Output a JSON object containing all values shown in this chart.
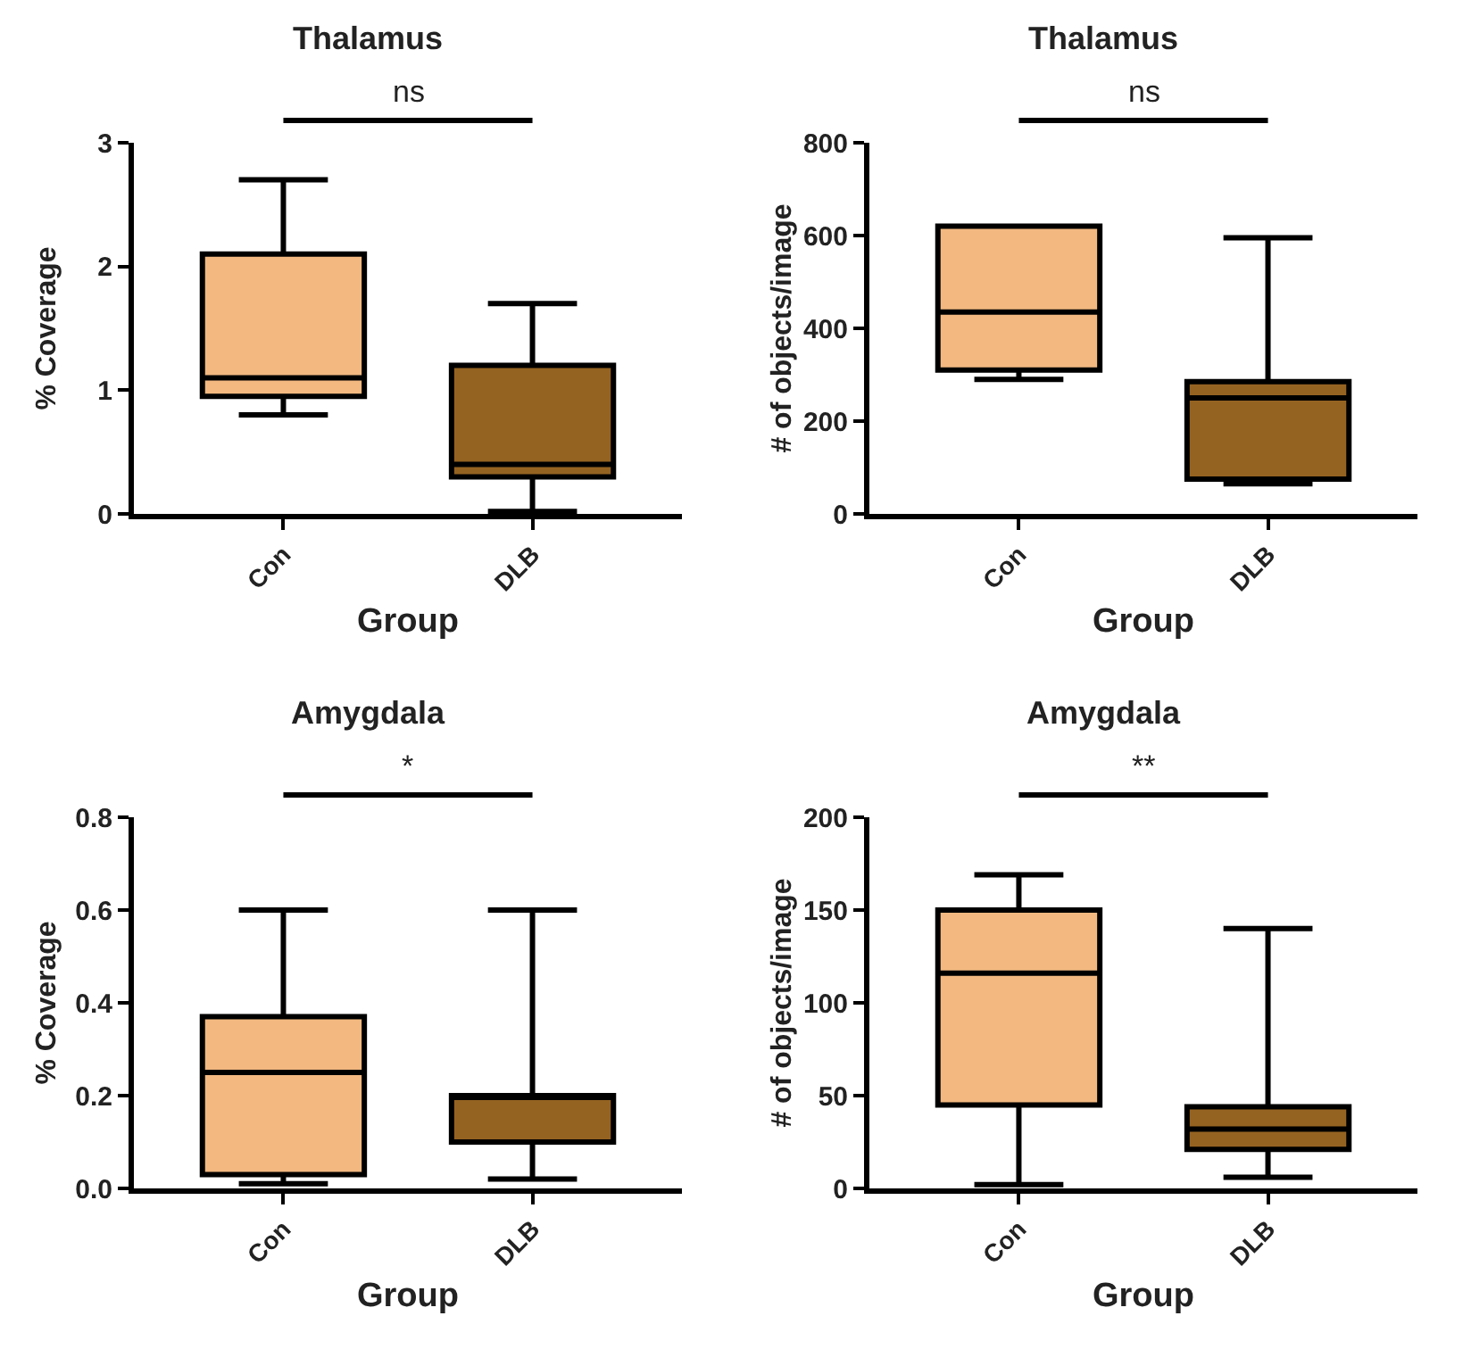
{
  "chart_data": [
    {
      "type": "box",
      "title": "Thalamus",
      "ylabel": "% Coverage",
      "xlabel": "Group",
      "categories": [
        "Con",
        "DLB"
      ],
      "colors": [
        "#f2b880",
        "#956321"
      ],
      "boxes": [
        {
          "low": 0.8,
          "q1": 0.95,
          "median": 1.1,
          "q3": 2.1,
          "high": 2.7
        },
        {
          "low": 0.02,
          "q1": 0.3,
          "median": 0.4,
          "q3": 1.2,
          "high": 1.7
        }
      ],
      "ylim": [
        0,
        3
      ],
      "yticks": [
        0,
        1,
        2,
        3
      ],
      "grid": false,
      "annotations": [
        "ns"
      ]
    },
    {
      "type": "box",
      "title": "Thalamus",
      "ylabel": "# of objects/image",
      "xlabel": "Group",
      "categories": [
        "Con",
        "DLB"
      ],
      "colors": [
        "#f2b880",
        "#956321"
      ],
      "boxes": [
        {
          "low": 290,
          "q1": 310,
          "median": 435,
          "q3": 620,
          "high": 620
        },
        {
          "low": 65,
          "q1": 75,
          "median": 250,
          "q3": 285,
          "high": 595
        }
      ],
      "ylim": [
        0,
        800
      ],
      "yticks": [
        0,
        200,
        400,
        600,
        800
      ],
      "grid": false,
      "annotations": [
        "ns"
      ]
    },
    {
      "type": "box",
      "title": "Amygdala",
      "ylabel": "% Coverage",
      "xlabel": "Group",
      "categories": [
        "Con",
        "DLB"
      ],
      "colors": [
        "#f2b880",
        "#956321"
      ],
      "boxes": [
        {
          "low": 0.01,
          "q1": 0.03,
          "median": 0.25,
          "q3": 0.37,
          "high": 0.6
        },
        {
          "low": 0.02,
          "q1": 0.1,
          "median": 0.2,
          "q3": 0.2,
          "high": 0.6
        }
      ],
      "ylim": [
        0,
        0.8
      ],
      "yticks": [
        {
          "value": 0,
          "label": "0.0"
        },
        0.2,
        0.4,
        0.6,
        0.8
      ],
      "grid": false,
      "annotations": [
        "*"
      ]
    },
    {
      "type": "box",
      "title": "Amygdala",
      "ylabel": "# of objects/image",
      "xlabel": "Group",
      "categories": [
        "Con",
        "DLB"
      ],
      "colors": [
        "#f2b880",
        "#956321"
      ],
      "boxes": [
        {
          "low": 2,
          "q1": 45,
          "median": 116,
          "q3": 150,
          "high": 169
        },
        {
          "low": 6,
          "q1": 21,
          "median": 32,
          "q3": 44,
          "high": 140
        }
      ],
      "ylim": [
        0,
        200
      ],
      "yticks": [
        0,
        50,
        100,
        150,
        200
      ],
      "grid": false,
      "annotations": [
        "**"
      ]
    }
  ]
}
